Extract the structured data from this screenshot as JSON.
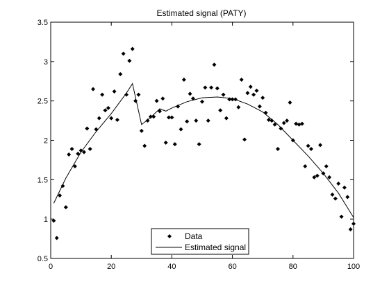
{
  "chart_data": {
    "type": "scatter",
    "title": "Estimated signal (PATY)",
    "xlabel": "",
    "ylabel": "",
    "xlim": [
      0,
      100
    ],
    "ylim": [
      0.5,
      3.5
    ],
    "xticks": [
      0,
      20,
      40,
      60,
      80,
      100
    ],
    "yticks": [
      0.5,
      1,
      1.5,
      2,
      2.5,
      3,
      3.5
    ],
    "grid": false,
    "legend_position": "bottom-center",
    "series": [
      {
        "name": "Data",
        "kind": "points",
        "marker": "diamond",
        "color": "#000000",
        "x": [
          1,
          2,
          3,
          4,
          5,
          6,
          7,
          8,
          9,
          10,
          11,
          12,
          13,
          14,
          15,
          16,
          17,
          18,
          19,
          20,
          21,
          22,
          23,
          24,
          25,
          26,
          27,
          28,
          29,
          30,
          31,
          32,
          33,
          34,
          35,
          36,
          37,
          38,
          39,
          40,
          41,
          42,
          43,
          44,
          45,
          46,
          47,
          48,
          49,
          50,
          51,
          52,
          53,
          54,
          55,
          56,
          57,
          58,
          59,
          60,
          61,
          62,
          63,
          64,
          65,
          66,
          67,
          68,
          69,
          70,
          71,
          72,
          73,
          74,
          75,
          76,
          77,
          78,
          79,
          80,
          81,
          82,
          83,
          84,
          85,
          86,
          87,
          88,
          89,
          90,
          91,
          92,
          93,
          94,
          95,
          96,
          97,
          98,
          99,
          100
        ],
        "y": [
          0.98,
          0.76,
          1.3,
          1.42,
          1.15,
          1.82,
          1.89,
          1.67,
          1.83,
          1.87,
          1.85,
          2.15,
          1.89,
          2.65,
          2.14,
          2.28,
          2.58,
          2.38,
          2.41,
          2.28,
          2.62,
          2.26,
          2.84,
          3.1,
          2.58,
          3.01,
          3.16,
          2.5,
          2.58,
          2.12,
          1.93,
          2.25,
          2.3,
          2.3,
          2.5,
          2.37,
          2.53,
          1.97,
          2.29,
          2.29,
          1.95,
          2.43,
          2.14,
          2.77,
          2.24,
          2.59,
          2.53,
          2.25,
          1.95,
          2.49,
          2.67,
          2.25,
          2.67,
          2.96,
          2.66,
          2.38,
          2.58,
          2.28,
          2.52,
          2.52,
          2.52,
          2.42,
          2.77,
          2.01,
          2.6,
          2.68,
          2.58,
          2.63,
          2.43,
          2.54,
          2.35,
          2.26,
          2.25,
          2.2,
          1.89,
          2.15,
          2.22,
          2.25,
          2.48,
          2.0,
          2.21,
          2.2,
          2.21,
          1.67,
          1.93,
          1.89,
          1.53,
          1.55,
          1.94,
          1.58,
          1.67,
          1.53,
          1.31,
          1.26,
          1.45,
          1.03,
          1.4,
          1.28,
          0.87,
          0.94
        ]
      },
      {
        "name": "Estimated signal",
        "kind": "line",
        "color": "#000000",
        "x": [
          1,
          5,
          10,
          15,
          20,
          25,
          27,
          30,
          33,
          36,
          38,
          40,
          45,
          50,
          55,
          60,
          65,
          70,
          75,
          80,
          85,
          90,
          95,
          100
        ],
        "y": [
          1.2,
          1.52,
          1.85,
          2.11,
          2.34,
          2.6,
          2.72,
          2.2,
          2.29,
          2.4,
          2.37,
          2.41,
          2.49,
          2.54,
          2.55,
          2.53,
          2.46,
          2.36,
          2.2,
          2.0,
          1.8,
          1.58,
          1.33,
          1.02
        ]
      }
    ]
  }
}
